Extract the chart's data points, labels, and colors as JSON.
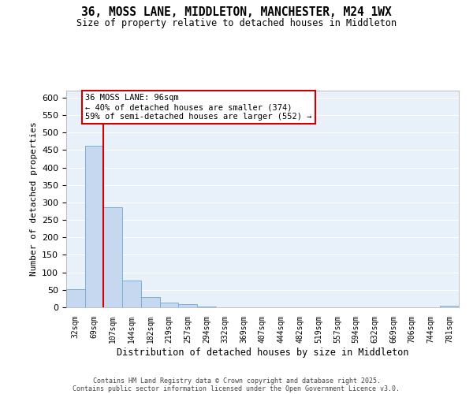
{
  "title": "36, MOSS LANE, MIDDLETON, MANCHESTER, M24 1WX",
  "subtitle": "Size of property relative to detached houses in Middleton",
  "xlabel": "Distribution of detached houses by size in Middleton",
  "ylabel": "Number of detached properties",
  "categories": [
    "32sqm",
    "69sqm",
    "107sqm",
    "144sqm",
    "182sqm",
    "219sqm",
    "257sqm",
    "294sqm",
    "332sqm",
    "369sqm",
    "407sqm",
    "444sqm",
    "482sqm",
    "519sqm",
    "557sqm",
    "594sqm",
    "632sqm",
    "669sqm",
    "706sqm",
    "744sqm",
    "781sqm"
  ],
  "values": [
    52,
    462,
    287,
    77,
    30,
    14,
    8,
    3,
    1,
    1,
    0,
    0,
    0,
    0,
    0,
    0,
    0,
    1,
    0,
    1,
    5
  ],
  "bar_color": "#c5d8ef",
  "bar_edge_color": "#7bafd4",
  "background_color": "#e8f0fa",
  "grid_color": "#ffffff",
  "red_line_x": 1.5,
  "annotation_text": "36 MOSS LANE: 96sqm\n← 40% of detached houses are smaller (374)\n59% of semi-detached houses are larger (552) →",
  "annotation_box_color": "#ffffff",
  "annotation_box_edge_color": "#cc0000",
  "ylim": [
    0,
    620
  ],
  "yticks": [
    0,
    50,
    100,
    150,
    200,
    250,
    300,
    350,
    400,
    450,
    500,
    550,
    600
  ],
  "footer_line1": "Contains HM Land Registry data © Crown copyright and database right 2025.",
  "footer_line2": "Contains public sector information licensed under the Open Government Licence v3.0."
}
